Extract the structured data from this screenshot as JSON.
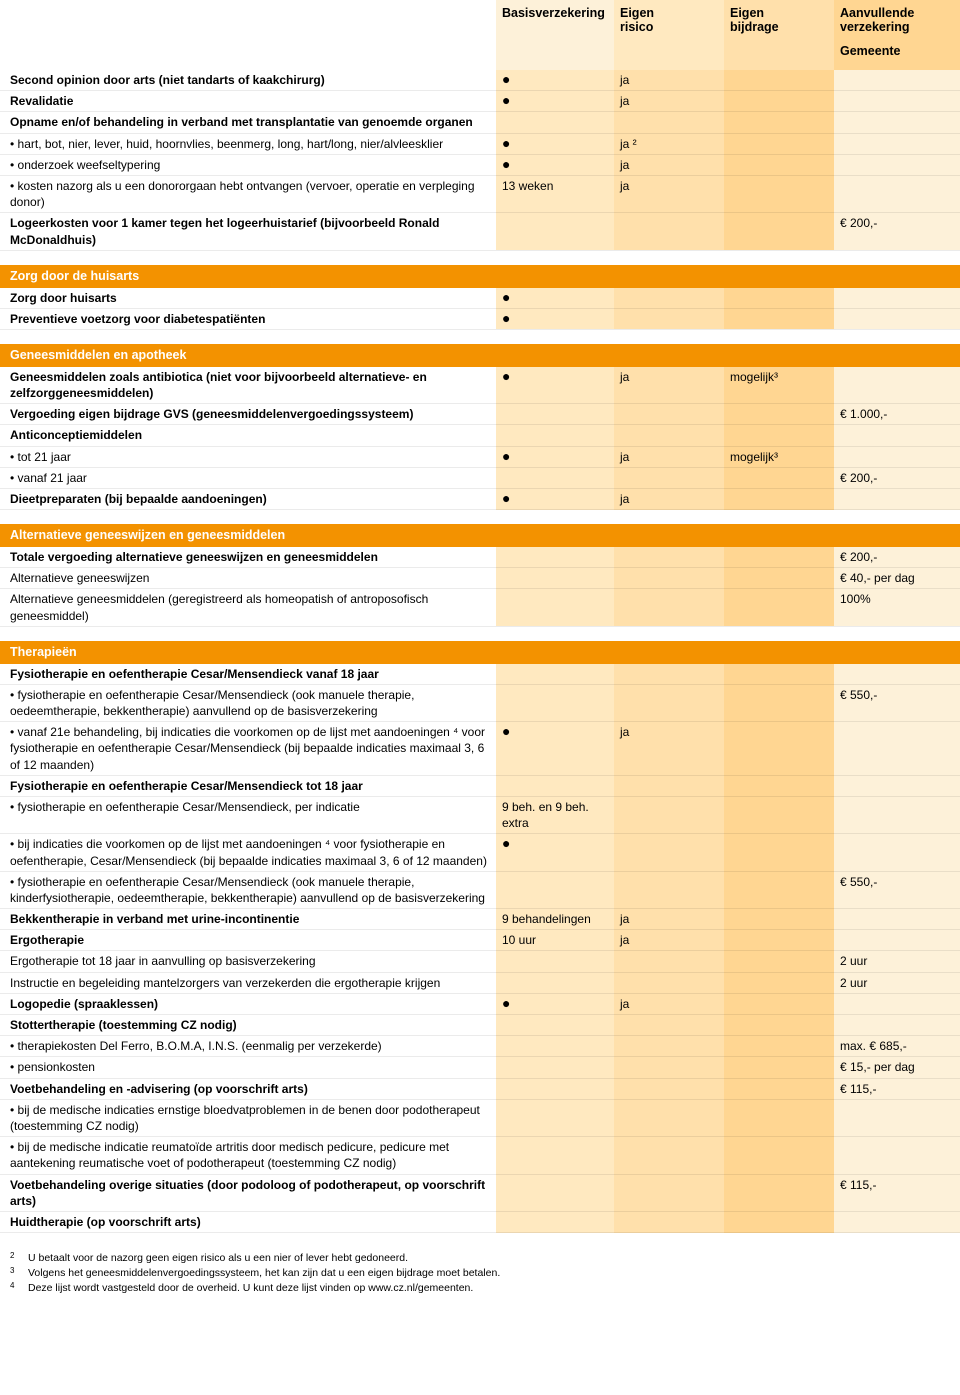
{
  "header": {
    "col1": "Basisverzekering",
    "col2a": "Eigen",
    "col2b": "risico",
    "col3a": "Eigen",
    "col3b": "bijdrage",
    "col4a": "Aanvullende",
    "col4b": "verzekering",
    "gemeente": "Gemeente"
  },
  "tints": {
    "c0": "t0",
    "c1": "t1",
    "c2": "t2",
    "c3": "t3",
    "c4": "t4"
  },
  "header_tints": {
    "c0": "t0",
    "c1": "t4",
    "c2": "t1",
    "c3": "t2",
    "c4": "t3"
  },
  "rows": [
    {
      "c0": "Second opinion door arts (niet tandarts of kaakchirurg)",
      "c1": "●",
      "c2": "ja",
      "bold0": true
    },
    {
      "c0": "Revalidatie",
      "c1": "●",
      "c2": "ja",
      "bold0": true
    },
    {
      "c0": "Opname en/of behandeling in verband met transplantatie van genoemde organen",
      "bold0": true
    },
    {
      "c0": "• hart, bot, nier, lever, huid, hoornvlies, beenmerg, long, hart/long, nier/alvleesklier",
      "c1": "●",
      "c2": "ja ²"
    },
    {
      "c0": "• onderzoek weefseltypering",
      "c1": "●",
      "c2": "ja"
    },
    {
      "c0": "• kosten nazorg als u een donororgaan hebt ontvangen (vervoer, operatie en verpleging donor)",
      "c1": "13 weken",
      "c2": "ja"
    },
    {
      "c0": "Logeerkosten voor 1 kamer tegen het logeerhuistarief (bijvoorbeeld Ronald McDonaldhuis)",
      "c4": "€ 200,-",
      "bold0": true
    },
    {
      "spacer": true
    },
    {
      "section": "Zorg door de huisarts"
    },
    {
      "c0": "Zorg door huisarts",
      "c1": "●",
      "bold0": true
    },
    {
      "c0": "Preventieve voetzorg voor diabetespatiënten",
      "c1": "●",
      "bold0": true
    },
    {
      "spacer": true
    },
    {
      "section": "Geneesmiddelen en apotheek"
    },
    {
      "c0": "Geneesmiddelen zoals antibiotica (niet voor bijvoorbeeld alternatieve- en zelfzorggeneesmiddelen)",
      "c1": "●",
      "c2": "ja",
      "c3": "mogelijk³",
      "bold0": true
    },
    {
      "c0": "Vergoeding eigen bijdrage GVS (geneesmiddelenvergoedingssysteem)",
      "c4": "€ 1.000,-",
      "bold0": true
    },
    {
      "c0": "Anticonceptiemiddelen",
      "bold0": true
    },
    {
      "c0": "• tot 21 jaar",
      "c1": "●",
      "c2": "ja",
      "c3": "mogelijk³"
    },
    {
      "c0": "• vanaf 21 jaar",
      "c4": "€ 200,-"
    },
    {
      "c0": "Dieetpreparaten (bij bepaalde aandoeningen)",
      "c1": "●",
      "c2": "ja",
      "bold0": true
    },
    {
      "spacer": true
    },
    {
      "section": "Alternatieve geneeswijzen en geneesmiddelen"
    },
    {
      "c0": "Totale vergoeding alternatieve geneeswijzen en geneesmiddelen",
      "c4": "€ 200,-",
      "bold0": true
    },
    {
      "c0": "Alternatieve geneeswijzen",
      "c4": "€ 40,- per dag"
    },
    {
      "c0": "Alternatieve geneesmiddelen (geregistreerd als homeopatish of antroposofisch geneesmiddel)",
      "c4": "100%"
    },
    {
      "spacer": true
    },
    {
      "section": "Therapieën"
    },
    {
      "c0": "Fysiotherapie en oefentherapie Cesar/Mensendieck vanaf 18 jaar",
      "bold0": true
    },
    {
      "c0": "• fysiotherapie en oefentherapie Cesar/Mensendieck (ook manuele therapie, oedeemtherapie, bekkentherapie) aanvullend op de basisverzekering",
      "c4": "€ 550,-"
    },
    {
      "c0": "• vanaf 21e behandeling, bij indicaties die voorkomen op de lijst met aandoeningen ⁴ voor fysiotherapie en oefentherapie Cesar/Mensendieck (bij bepaalde indicaties maximaal 3, 6 of 12 maanden)",
      "c1": "●",
      "c2": "ja"
    },
    {
      "c0": "Fysiotherapie en oefentherapie Cesar/Mensendieck tot 18 jaar",
      "bold0": true
    },
    {
      "c0": "• fysiotherapie en oefentherapie Cesar/Mensendieck, per indicatie",
      "c1": "9 beh. en 9 beh. extra"
    },
    {
      "c0": "• bij indicaties die voorkomen op de lijst met aandoeningen ⁴ voor fysiotherapie en oefentherapie, Cesar/Mensendieck (bij bepaalde indicaties maximaal 3, 6 of 12 maanden)",
      "c1": "●"
    },
    {
      "c0": "• fysiotherapie en oefentherapie Cesar/Mensendieck (ook manuele therapie, kinderfysiotherapie, oedeemtherapie, bekkentherapie) aanvullend op de basisverzekering",
      "c4": "€ 550,-"
    },
    {
      "c0": "Bekkentherapie in verband met urine-incontinentie",
      "c1": "9 behandelingen",
      "c2": "ja",
      "bold0": true
    },
    {
      "c0": "Ergotherapie",
      "c1": "10 uur",
      "c2": "ja",
      "bold0": true
    },
    {
      "c0": "Ergotherapie tot 18 jaar in aanvulling op basisverzekering",
      "c4": "2 uur"
    },
    {
      "c0": "Instructie en begeleiding mantelzorgers van verzekerden die ergotherapie krijgen",
      "c4": "2 uur"
    },
    {
      "c0": "Logopedie (spraaklessen)",
      "c1": "●",
      "c2": "ja",
      "bold0": true
    },
    {
      "c0": "Stottertherapie (toestemming CZ nodig)",
      "bold0": true
    },
    {
      "c0": "• therapiekosten Del Ferro, B.O.M.A, I.N.S. (eenmalig per verzekerde)",
      "c4": "max. € 685,-"
    },
    {
      "c0": "• pensionkosten",
      "c4": "€ 15,- per dag"
    },
    {
      "c0": "Voetbehandeling en -advisering  (op voorschrift arts)",
      "c4": "€ 115,-",
      "bold0": true
    },
    {
      "c0": "• bij de medische indicaties ernstige bloedvatproblemen in de benen door podotherapeut (toestemming CZ nodig)"
    },
    {
      "c0": "• bij de medische indicatie reumatoïde artritis door medisch pedicure, pedicure met aantekening reumatische voet of podotherapeut (toestemming CZ nodig)"
    },
    {
      "c0": "Voetbehandeling overige situaties (door podoloog of podotherapeut, op voorschrift arts)",
      "c4": "€ 115,-",
      "bold0": true
    },
    {
      "c0": "Huidtherapie (op voorschrift arts)",
      "bold0": true
    }
  ],
  "footnotes": [
    {
      "m": "2",
      "t": "U betaalt voor de nazorg geen eigen risico als u een nier of lever hebt gedoneerd."
    },
    {
      "m": "3",
      "t": "Volgens het geneesmiddelenvergoedingssysteem, het kan zijn dat u een eigen bijdrage moet betalen."
    },
    {
      "m": "4",
      "t": "Deze lijst wordt vastgesteld door de overheid. U kunt deze lijst vinden op www.cz.nl/gemeenten."
    }
  ]
}
